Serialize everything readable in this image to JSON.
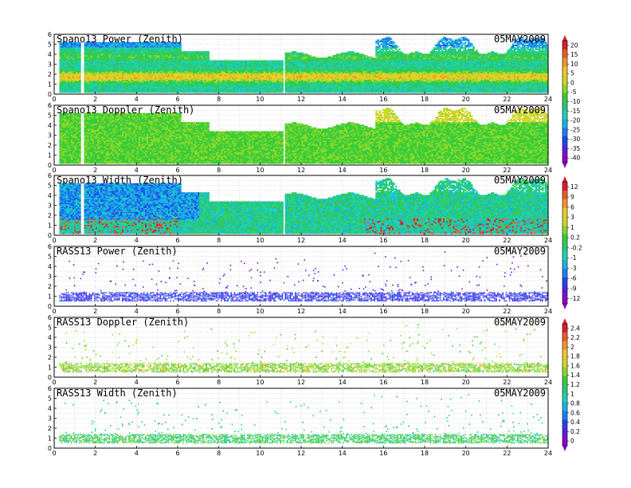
{
  "chart_data": [
    {
      "type": "heatmap",
      "title": "Spano13 Power (Zenith)",
      "date": "05MAY2009",
      "x_range": [
        0,
        24
      ],
      "y_range": [
        0,
        6
      ],
      "x_ticks": [
        "0",
        "2",
        "4",
        "6",
        "8",
        "10",
        "12",
        "14",
        "16",
        "18",
        "20",
        "22",
        "24"
      ],
      "y_ticks": [
        "0",
        "1",
        "2",
        "3",
        "4",
        "5",
        "6"
      ],
      "grid": "dotted",
      "colorbar": {
        "ticks": [
          "20",
          "15",
          "10",
          "5",
          "0",
          "-5",
          "-10",
          "-15",
          "-20",
          "-25",
          "-30",
          "-35",
          "-40"
        ]
      }
    },
    {
      "type": "heatmap",
      "title": "Spano13 Doppler (Zenith)",
      "date": "05MAY2009",
      "x_range": [
        0,
        24
      ],
      "y_range": [
        0,
        6
      ],
      "x_ticks": [
        "0",
        "2",
        "4",
        "6",
        "8",
        "10",
        "12",
        "14",
        "16",
        "18",
        "20",
        "22",
        "24"
      ],
      "y_ticks": [
        "0",
        "1",
        "2",
        "3",
        "4",
        "5",
        "6"
      ],
      "grid": "dotted"
    },
    {
      "type": "heatmap",
      "title": "Spano13 Width (Zenith)",
      "date": "05MAY2009",
      "x_range": [
        0,
        24
      ],
      "y_range": [
        0,
        6
      ],
      "x_ticks": [
        "0",
        "2",
        "4",
        "6",
        "8",
        "10",
        "12",
        "14",
        "16",
        "18",
        "20",
        "22",
        "24"
      ],
      "y_ticks": [
        "0",
        "1",
        "2",
        "3",
        "4",
        "5",
        "6"
      ],
      "grid": "dotted",
      "colorbar": {
        "ticks": [
          "12",
          "9",
          "6",
          "3",
          "1",
          "0.2",
          "-0.2",
          "-1",
          "-3",
          "-6",
          "-9",
          "-12"
        ]
      }
    },
    {
      "type": "heatmap",
      "title": "RASS13 Power (Zenith)",
      "date": "05MAY2009",
      "x_range": [
        0,
        24
      ],
      "y_range": [
        0,
        6
      ],
      "x_ticks": [
        "0",
        "2",
        "4",
        "6",
        "8",
        "10",
        "12",
        "14",
        "16",
        "18",
        "20",
        "22",
        "24"
      ],
      "y_ticks": [
        "0",
        "1",
        "2",
        "3",
        "4",
        "5",
        "6"
      ],
      "grid": "dotted"
    },
    {
      "type": "heatmap",
      "title": "RASS13 Doppler (Zenith)",
      "date": "05MAY2009",
      "x_range": [
        0,
        24
      ],
      "y_range": [
        0,
        6
      ],
      "x_ticks": [
        "0",
        "2",
        "4",
        "6",
        "8",
        "10",
        "12",
        "14",
        "16",
        "18",
        "20",
        "22",
        "24"
      ],
      "y_ticks": [
        "0",
        "1",
        "2",
        "3",
        "4",
        "5",
        "6"
      ],
      "grid": "dotted",
      "colorbar": {
        "ticks": [
          "2.4",
          "2.2",
          "2",
          "1.8",
          "1.6",
          "1.4",
          "1.2",
          "1",
          "0.8",
          "0.6",
          "0.4",
          "0.2",
          "0"
        ]
      }
    },
    {
      "type": "heatmap",
      "title": "RASS13 Width (Zenith)",
      "date": "05MAY2009",
      "x_range": [
        0,
        24
      ],
      "y_range": [
        0,
        6
      ],
      "x_ticks": [
        "0",
        "2",
        "4",
        "6",
        "8",
        "10",
        "12",
        "14",
        "16",
        "18",
        "20",
        "22",
        "24"
      ],
      "y_ticks": [
        "0",
        "1",
        "2",
        "3",
        "4",
        "5",
        "6"
      ],
      "grid": "dotted"
    }
  ],
  "colors": {
    "palette": [
      "#8e00c8",
      "#5a1ee6",
      "#2046f0",
      "#1e7ef0",
      "#18b4e6",
      "#1ed2b4",
      "#28c878",
      "#38cc3a",
      "#8cd828",
      "#d2d628",
      "#f0c828",
      "#f09628",
      "#ee5a28",
      "#dc1e2a"
    ]
  }
}
